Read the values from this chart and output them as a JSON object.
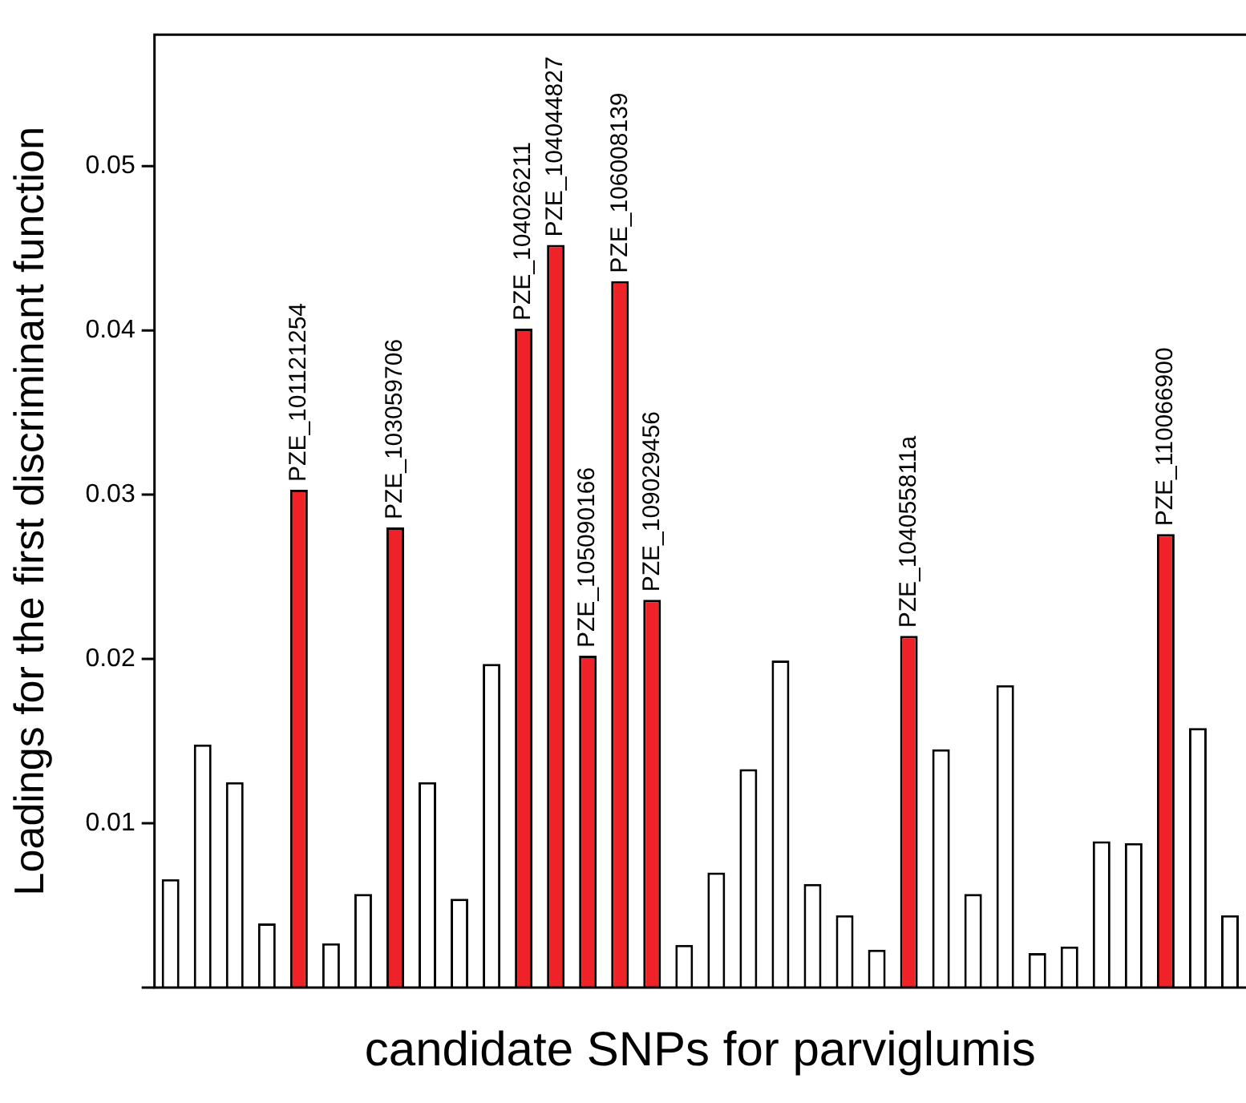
{
  "chart_data": {
    "type": "bar",
    "xlabel": "candidate SNPs for parviglumis",
    "ylabel": "Loadings for the first discriminant function",
    "categories": [
      null,
      null,
      null,
      null,
      null,
      null,
      null,
      null,
      null,
      null,
      null,
      null,
      null,
      null,
      null,
      null,
      null,
      null,
      null,
      null,
      null,
      null,
      null,
      null,
      null,
      null,
      null,
      null,
      null,
      null,
      null,
      null,
      null,
      null
    ],
    "values": [
      0.0066,
      0.0148,
      0.0125,
      0.0039,
      0.0303,
      0.0027,
      0.0057,
      0.028,
      0.0125,
      0.0054,
      0.0197,
      0.0401,
      0.0452,
      0.0202,
      0.043,
      0.0236,
      0.0026,
      0.007,
      0.0133,
      0.0199,
      0.0063,
      0.0044,
      0.0023,
      0.0214,
      0.0145,
      0.0057,
      0.0184,
      0.0021,
      0.0025,
      0.0089,
      0.0088,
      0.0276,
      0.0158,
      0.0044
    ],
    "colors": [
      "#ffffff",
      "#ffffff",
      "#ffffff",
      "#ffffff",
      "#ee2227",
      "#ffffff",
      "#ffffff",
      "#ee2227",
      "#ffffff",
      "#ffffff",
      "#ffffff",
      "#ee2227",
      "#ee2227",
      "#ee2227",
      "#ee2227",
      "#ee2227",
      "#ffffff",
      "#ffffff",
      "#ffffff",
      "#ffffff",
      "#ffffff",
      "#ffffff",
      "#ffffff",
      "#ee2227",
      "#ffffff",
      "#ffffff",
      "#ffffff",
      "#ffffff",
      "#ffffff",
      "#ffffff",
      "#ffffff",
      "#ee2227",
      "#ffffff",
      "#ffffff"
    ],
    "annotations": [
      {
        "text": "PZE_101121254",
        "y": 0.0303
      },
      {
        "text": "PZE_103059706",
        "y": 0.028
      },
      {
        "text": "PZE_104026211",
        "y": 0.0401
      },
      {
        "text": "PZE_104044827",
        "y": 0.0452
      },
      {
        "text": "PZE_105090166",
        "y": 0.0202
      },
      {
        "text": "PZE_106008139",
        "y": 0.043
      },
      {
        "text": "PZE_109029456",
        "y": 0.0236
      },
      {
        "text": "PZE_104055811a",
        "y": 0.0214
      },
      {
        "text": "PZE_110066900",
        "y": 0.0276
      }
    ],
    "ylim": [
      0,
      0.058
    ],
    "yticks": [
      {
        "value": 0,
        "label": null
      },
      0.01,
      0.02,
      0.03,
      0.04,
      0.05
    ],
    "grid": false,
    "legend": false
  }
}
